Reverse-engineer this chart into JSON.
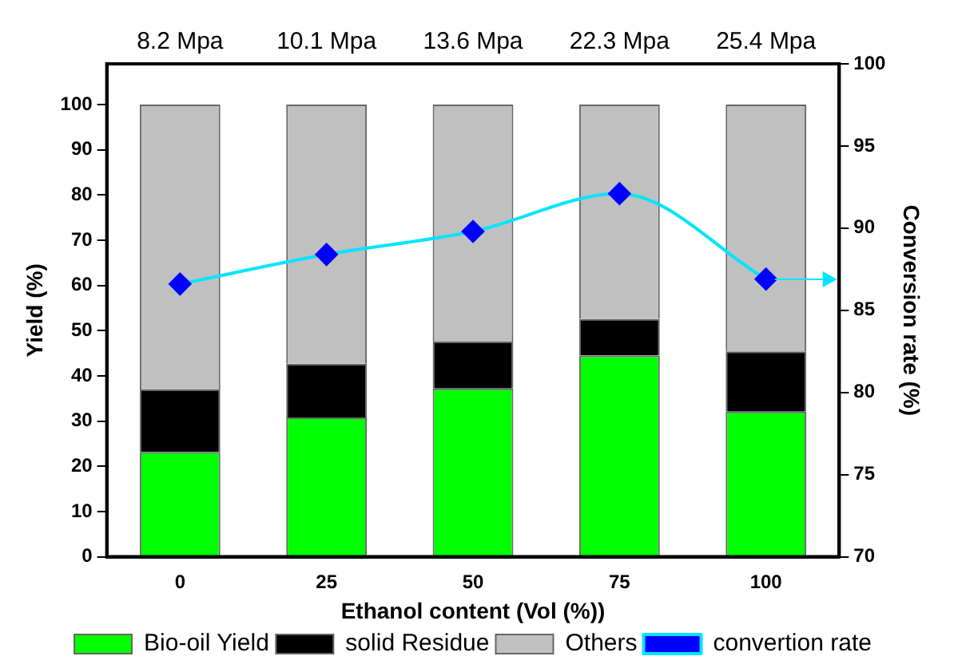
{
  "chart_data": {
    "type": "bar",
    "stacked": true,
    "xlabel": "Ethanol content (Vol (%))",
    "ylabel": "Yield (%)",
    "y2label": "Conversion rate (%)",
    "categories": [
      "0",
      "25",
      "50",
      "75",
      "100"
    ],
    "series": [
      {
        "name": "Bio-oil Yield",
        "color": "#00ff00",
        "values": [
          23.2,
          30.8,
          37.2,
          44.5,
          32.1
        ]
      },
      {
        "name": "solid Residue",
        "color": "#000000",
        "values": [
          13.8,
          11.9,
          10.4,
          8.1,
          13.3
        ]
      },
      {
        "name": "Others",
        "color": "#c0c0c0",
        "values": [
          63,
          57.3,
          52.4,
          47.4,
          54.6
        ]
      },
      {
        "name": "convertion rate",
        "type": "line",
        "axis": "y2",
        "color": "#00e5ff",
        "marker": "diamond",
        "values": [
          86.6,
          88.4,
          89.8,
          92.1,
          86.9
        ]
      }
    ],
    "ylim": [
      0,
      109
    ],
    "yticks": [
      0,
      10,
      20,
      30,
      40,
      50,
      60,
      70,
      80,
      90,
      100
    ],
    "y2lim": [
      70,
      100
    ],
    "y2ticks": [
      70,
      75,
      80,
      85,
      90,
      95,
      100
    ],
    "annotations": [
      "8.2 Mpa",
      "10.1 Mpa",
      "13.6 Mpa",
      "22.3 Mpa",
      "25.4 Mpa"
    ],
    "grid": false,
    "legend": "bottom"
  }
}
